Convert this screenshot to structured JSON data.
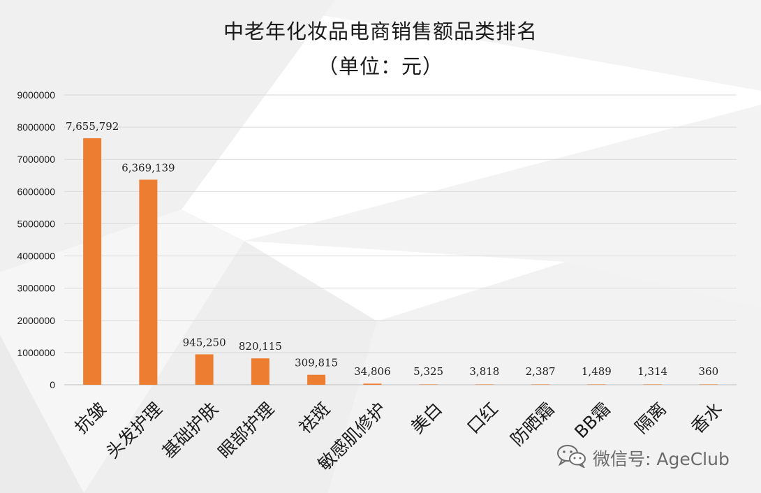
{
  "chart_data": {
    "type": "bar",
    "title": "中老年化妆品电商销售额品类排名",
    "subtitle": "（单位：元）",
    "categories": [
      "抗皱",
      "头发护理",
      "基础护肤",
      "眼部护理",
      "祛斑",
      "敏感肌修护",
      "美白",
      "口红",
      "防晒霜",
      "BB霜",
      "隔离",
      "香水"
    ],
    "values": [
      7655792,
      6369139,
      945250,
      820115,
      309815,
      34806,
      5325,
      3818,
      2387,
      1489,
      1314,
      360
    ],
    "data_labels": [
      "7,655,792",
      "6,369,139",
      "945,250",
      "820,115",
      "309,815",
      "34,806",
      "5,325",
      "3,818",
      "2,387",
      "1,489",
      "1,314",
      "360"
    ],
    "y_ticks": [
      "0",
      "1000000",
      "2000000",
      "3000000",
      "4000000",
      "5000000",
      "6000000",
      "7000000",
      "8000000",
      "9000000"
    ],
    "ylim": [
      0,
      9000000
    ],
    "grid": true,
    "legend": "none",
    "bar_color": "#ed7d31",
    "grid_color": "#d9d9d9"
  },
  "watermark": {
    "icon": "wechat-icon",
    "text": "微信号: AgeClub"
  }
}
